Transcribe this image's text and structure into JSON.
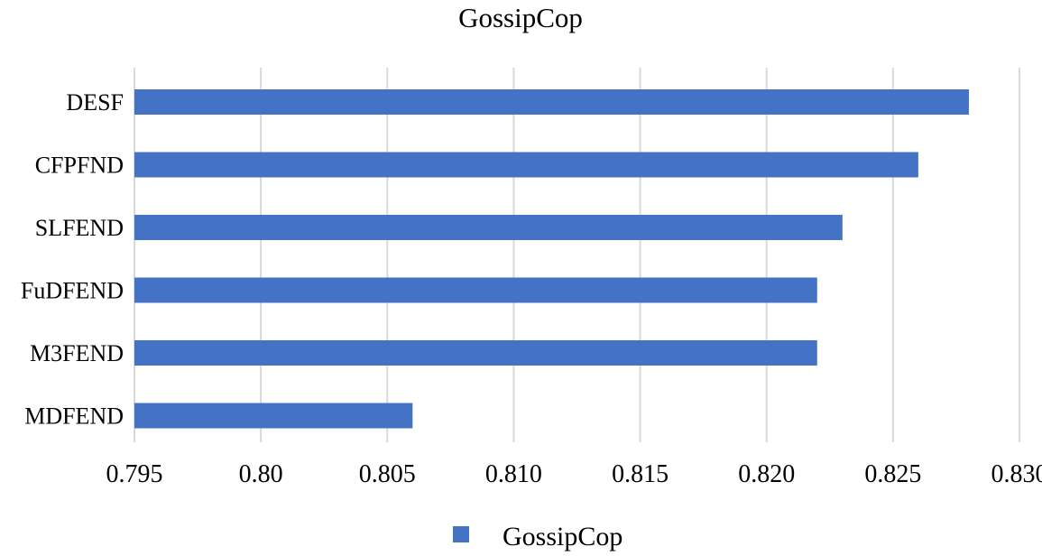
{
  "chart_data": {
    "type": "bar",
    "orientation": "horizontal",
    "title": "GossipCop",
    "categories": [
      "DESF",
      "CFPFND",
      "SLFEND",
      "FuDFEND",
      "M3FEND",
      "MDFEND"
    ],
    "series": [
      {
        "name": "GossipCop",
        "values": [
          0.828,
          0.826,
          0.823,
          0.822,
          0.822,
          0.806
        ]
      }
    ],
    "xlim": [
      0.795,
      0.83
    ],
    "x_ticks": [
      "0.795",
      "0.80",
      "0.805",
      "0.810",
      "0.815",
      "0.820",
      "0.825",
      "0.830"
    ],
    "grid": true,
    "legend_position": "bottom",
    "bar_color": "#4472c4",
    "grid_color": "#d9d9d9"
  }
}
